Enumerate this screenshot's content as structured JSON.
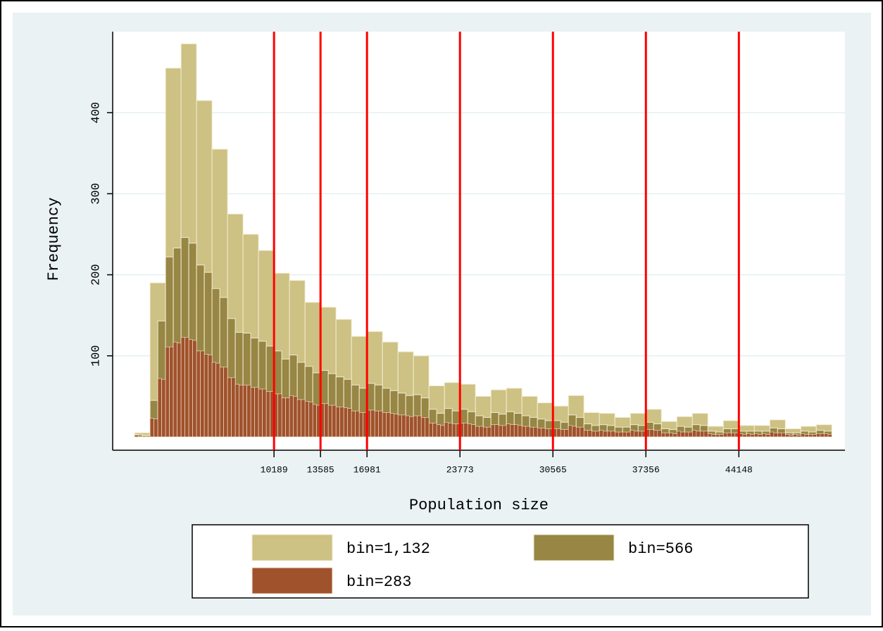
{
  "chart_data": {
    "type": "histogram",
    "x_label": "Population size",
    "y_label": "Frequency",
    "xlim": [
      -1600,
      51900
    ],
    "ylim": [
      0,
      500
    ],
    "xticks": [
      10189,
      13585,
      16981,
      23773,
      30565,
      37356,
      44148
    ],
    "xtick_line_color": "#ff0000",
    "yticks": [
      100,
      200,
      300,
      400
    ],
    "grid": true,
    "series": [
      {
        "name": "bin=1,132",
        "color": "#cdc183",
        "bins": [
          0,
          1132,
          2264,
          3396,
          4528,
          5660,
          6792,
          7924,
          9056,
          10188,
          11320,
          12452,
          13584,
          14716,
          15848,
          16980,
          18112,
          19244,
          20376,
          21508,
          22640,
          23772,
          24904,
          26036,
          27168,
          28300,
          29432,
          30564,
          31696,
          32828,
          33960,
          35092,
          36224,
          37356,
          38488,
          39620,
          40752,
          41884,
          43016,
          44148,
          45280,
          46412,
          47544,
          48676,
          49808,
          50940
        ],
        "values": [
          5,
          190,
          455,
          485,
          415,
          355,
          275,
          250,
          230,
          202,
          193,
          166,
          160,
          145,
          124,
          130,
          117,
          105,
          100,
          63,
          67,
          65,
          50,
          58,
          60,
          50,
          42,
          38,
          51,
          30,
          29,
          24,
          29,
          34,
          19,
          25,
          29,
          13,
          20,
          14,
          14,
          21,
          10,
          13,
          15
        ]
      },
      {
        "name": "bin=566",
        "color": "#978644",
        "bins": [
          0,
          566,
          1132,
          1698,
          2264,
          2830,
          3396,
          3962,
          4528,
          5094,
          5660,
          6226,
          6792,
          7358,
          7924,
          8490,
          9056,
          9622,
          10188,
          10754,
          11320,
          11886,
          12452,
          13018,
          13584,
          14150,
          14716,
          15282,
          15848,
          16414,
          16980,
          17546,
          18112,
          18678,
          19244,
          19810,
          20376,
          20942,
          21508,
          22074,
          22640,
          23206,
          23772,
          24338,
          24904,
          25470,
          26036,
          26602,
          27168,
          27734,
          28300,
          28866,
          29432,
          29998,
          30564,
          31130,
          31696,
          32262,
          32828,
          33394,
          33960,
          34526,
          35092,
          35658,
          36224,
          36790,
          37356,
          37922,
          38488,
          39054,
          39620,
          40186,
          40752,
          41318,
          41884,
          42450,
          43016,
          43582,
          44148,
          44714,
          45280,
          45846,
          46412,
          46978,
          47544,
          48110,
          48676,
          49242,
          49808,
          50374,
          50940
        ],
        "values": [
          3,
          2,
          45,
          143,
          222,
          233,
          246,
          239,
          212,
          203,
          183,
          172,
          146,
          129,
          128,
          122,
          118,
          112,
          106,
          96,
          101,
          92,
          87,
          79,
          82,
          78,
          74,
          71,
          64,
          60,
          66,
          64,
          60,
          57,
          54,
          51,
          52,
          48,
          34,
          29,
          35,
          32,
          34,
          31,
          26,
          24,
          30,
          28,
          31,
          29,
          26,
          24,
          22,
          20,
          20,
          18,
          27,
          24,
          16,
          14,
          15,
          14,
          12,
          12,
          15,
          14,
          18,
          16,
          10,
          9,
          13,
          12,
          15,
          14,
          7,
          6,
          10,
          10,
          7,
          7,
          7,
          7,
          11,
          10,
          5,
          5,
          7,
          6,
          8,
          7
        ]
      },
      {
        "name": "bin=283",
        "color": "#a0522d",
        "bins": [
          0,
          283,
          566,
          849,
          1132,
          1415,
          1698,
          1981,
          2264,
          2547,
          2830,
          3113,
          3396,
          3679,
          3962,
          4245,
          4528,
          4811,
          5094,
          5377,
          5660,
          5943,
          6226,
          6509,
          6792,
          7075,
          7358,
          7641,
          7924,
          8207,
          8490,
          8773,
          9056,
          9339,
          9622,
          9905,
          10188,
          10471,
          10754,
          11037,
          11320,
          11603,
          11886,
          12169,
          12452,
          12735,
          13018,
          13301,
          13584,
          13867,
          14150,
          14433,
          14716,
          14999,
          15282,
          15565,
          15848,
          16131,
          16414,
          16697,
          16980,
          17263,
          17546,
          17829,
          18112,
          18395,
          18678,
          18961,
          19244,
          19527,
          19810,
          20093,
          20376,
          20659,
          20942,
          21225,
          21508,
          21791,
          22074,
          22357,
          22640,
          22923,
          23206,
          23489,
          23772,
          24055,
          24338,
          24621,
          24904,
          25187,
          25470,
          25753,
          26036,
          26319,
          26602,
          26885,
          27168,
          27451,
          27734,
          28017,
          28300,
          28583,
          28866,
          29149,
          29432,
          29715,
          29998,
          30281,
          30564,
          30847,
          31130,
          31413,
          31696,
          31979,
          32262,
          32545,
          32828,
          33111,
          33394,
          33677,
          33960,
          34243,
          34526,
          34809,
          35092,
          35375,
          35658,
          35941,
          36224,
          36507,
          36790,
          37073,
          37356,
          37639,
          37922,
          38205,
          38488,
          38771,
          39054,
          39337,
          39620,
          39903,
          40186,
          40469,
          40752,
          41035,
          41318,
          41601,
          41884,
          42167,
          42450,
          42733,
          43016,
          43299,
          43582,
          43865,
          44148,
          44431,
          44714,
          44997,
          45280,
          45563,
          45846,
          46129,
          46412,
          46695,
          46978,
          47261,
          47544,
          47827,
          48110,
          48393,
          48676,
          48959,
          49242,
          49525,
          49808,
          50091,
          50374,
          50657,
          50940
        ],
        "values": [
          2,
          1,
          1,
          1,
          23,
          22,
          72,
          71,
          111,
          111,
          117,
          116,
          123,
          123,
          120,
          119,
          106,
          106,
          102,
          101,
          92,
          91,
          86,
          86,
          73,
          73,
          65,
          64,
          64,
          64,
          61,
          61,
          59,
          59,
          56,
          56,
          53,
          53,
          48,
          48,
          51,
          50,
          46,
          46,
          44,
          43,
          40,
          39,
          41,
          41,
          39,
          39,
          37,
          37,
          36,
          35,
          32,
          32,
          30,
          30,
          33,
          33,
          32,
          32,
          30,
          30,
          29,
          28,
          27,
          27,
          26,
          25,
          26,
          26,
          24,
          24,
          17,
          17,
          15,
          14,
          18,
          17,
          16,
          16,
          17,
          17,
          16,
          15,
          13,
          13,
          12,
          12,
          15,
          15,
          14,
          14,
          16,
          15,
          15,
          14,
          13,
          13,
          12,
          12,
          11,
          11,
          10,
          10,
          10,
          10,
          9,
          9,
          14,
          13,
          12,
          12,
          8,
          8,
          7,
          7,
          8,
          7,
          7,
          7,
          6,
          6,
          6,
          6,
          8,
          7,
          7,
          7,
          9,
          9,
          8,
          8,
          5,
          5,
          5,
          4,
          7,
          6,
          6,
          6,
          8,
          7,
          7,
          7,
          4,
          3,
          3,
          3,
          5,
          5,
          5,
          5,
          4,
          3,
          4,
          3,
          4,
          3,
          4,
          3,
          6,
          5,
          5,
          5,
          3,
          2,
          3,
          2,
          4,
          3,
          3,
          3,
          4,
          4,
          4,
          3
        ]
      }
    ]
  }
}
